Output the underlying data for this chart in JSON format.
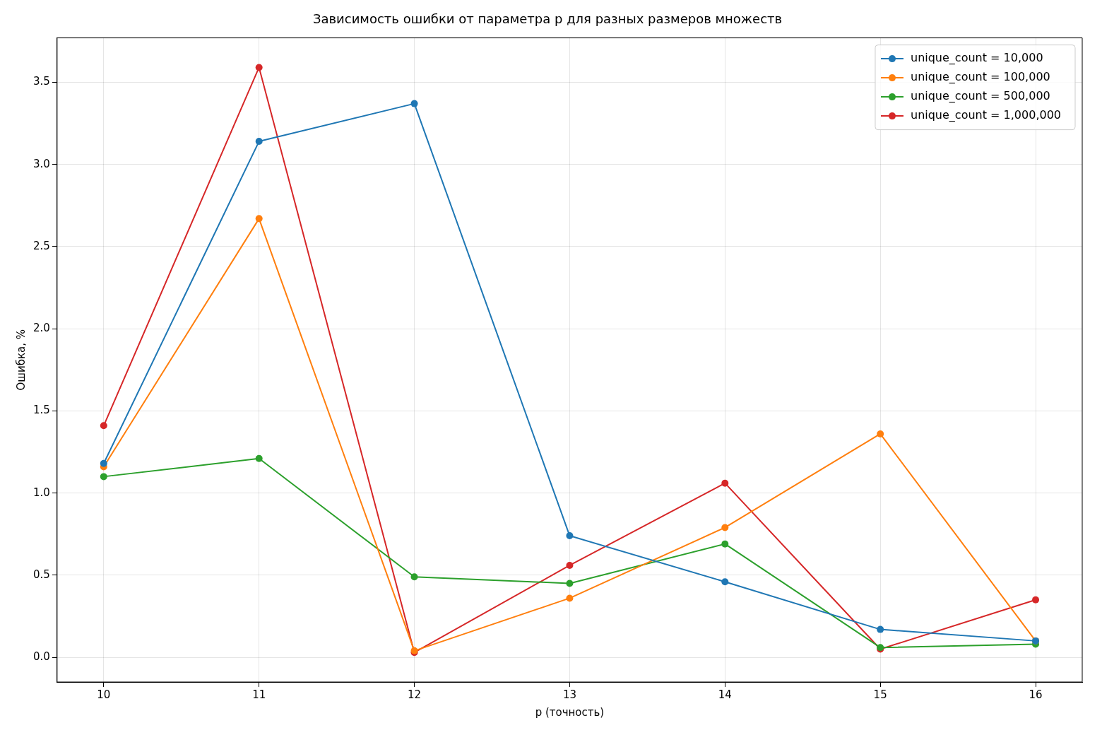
{
  "chart_data": {
    "type": "line",
    "title": "Зависимость ошибки от параметра p для разных размеров множеств",
    "xlabel": "p (точность)",
    "ylabel": "Ошибка, %",
    "x": [
      10,
      11,
      12,
      13,
      14,
      15,
      16
    ],
    "series": [
      {
        "name": "unique_count = 10,000",
        "color": "#1f77b4",
        "values": [
          1.18,
          3.14,
          3.37,
          0.74,
          0.46,
          0.17,
          0.1
        ]
      },
      {
        "name": "unique_count = 100,000",
        "color": "#ff7f0e",
        "values": [
          1.16,
          2.67,
          0.04,
          0.36,
          0.79,
          1.36,
          0.1
        ]
      },
      {
        "name": "unique_count = 500,000",
        "color": "#2ca02c",
        "values": [
          1.1,
          1.21,
          0.49,
          0.45,
          0.69,
          0.06,
          0.08
        ]
      },
      {
        "name": "unique_count = 1,000,000",
        "color": "#d62728",
        "values": [
          1.41,
          3.59,
          0.03,
          0.56,
          1.06,
          0.05,
          0.35
        ]
      }
    ],
    "xlim": [
      9.7,
      16.3
    ],
    "xticks": [
      10,
      11,
      12,
      13,
      14,
      15,
      16
    ],
    "ylim": [
      -0.15,
      3.77
    ],
    "yticks": [
      {
        "value": 0,
        "label": "0.0"
      },
      0.5,
      {
        "value": 1,
        "label": "1.0"
      },
      1.5,
      {
        "value": 2,
        "label": "2.0"
      },
      2.5,
      {
        "value": 3,
        "label": "3.0"
      },
      3.5
    ],
    "grid": true,
    "legend": "top right",
    "marker": "circle",
    "line_style": "solid"
  }
}
